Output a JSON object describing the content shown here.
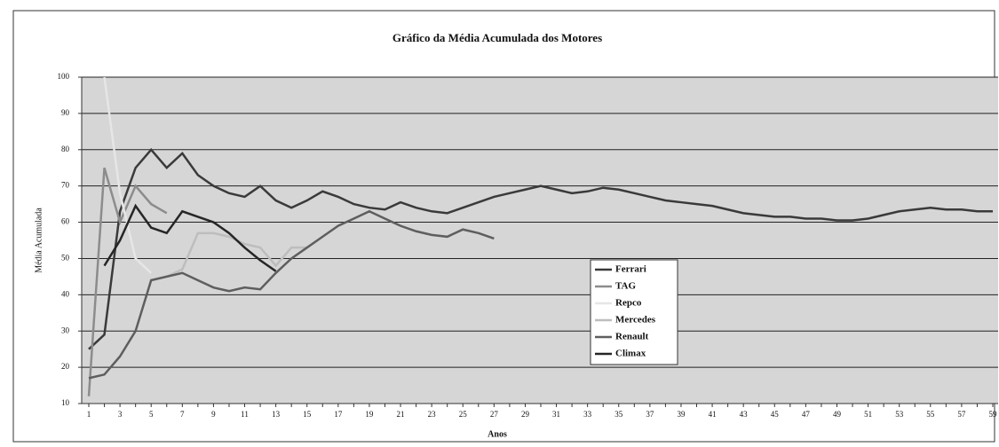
{
  "chart_data": {
    "type": "line",
    "title": "Gráfico da Média Acumulada dos Motores",
    "x_label": "Anos",
    "y_label": "Média Acumulada",
    "categories": [
      "1",
      null,
      "3",
      null,
      "5",
      null,
      "7",
      null,
      "9",
      null,
      "11",
      null,
      "13",
      null,
      "15",
      null,
      "17",
      null,
      "19",
      null,
      "21",
      null,
      "23",
      null,
      "25",
      null,
      "27",
      null,
      "29",
      null,
      "31",
      null,
      "33",
      null,
      "35",
      null,
      "37",
      null,
      "39",
      null,
      "41",
      null,
      "43",
      null,
      "45",
      null,
      "47",
      null,
      "49",
      null,
      "51",
      null,
      "53",
      null,
      "55",
      null,
      "57",
      null,
      "59"
    ],
    "ylim": [
      10,
      100
    ],
    "yticks": [
      10,
      20,
      30,
      40,
      50,
      60,
      70,
      80,
      90,
      100
    ],
    "grid": true,
    "legend": "center",
    "series": [
      {
        "name": "Ferrari",
        "color": "#3a3a3a",
        "values": [
          25,
          29,
          63,
          75,
          80,
          75,
          79,
          73,
          70,
          68,
          67,
          70,
          66,
          64,
          66,
          68.5,
          67,
          65,
          64,
          63.5,
          65.5,
          64,
          63,
          62.5,
          64,
          65.5,
          67,
          68,
          69,
          70,
          69,
          68,
          68.5,
          69.5,
          69,
          68,
          67,
          66,
          65.5,
          65,
          64.5,
          63.5,
          62.5,
          62,
          61.5,
          61.5,
          61,
          61,
          60.5,
          60.5,
          61,
          62,
          63,
          63.5,
          64,
          63.5,
          63.5,
          63,
          63
        ]
      },
      {
        "name": "TAG",
        "color": "#8c8c8c",
        "values": [
          12,
          75,
          60,
          70,
          65,
          62.5,
          null,
          null,
          null,
          null,
          null,
          null,
          null,
          null,
          null,
          null,
          null,
          null,
          null,
          null,
          null,
          null,
          null,
          null,
          null,
          null,
          null,
          null,
          null,
          null,
          null,
          null,
          null,
          null,
          null,
          null,
          null,
          null,
          null,
          null,
          null,
          null,
          null,
          null,
          null,
          null,
          null,
          null,
          null,
          null,
          null,
          null,
          null,
          null,
          null,
          null,
          null,
          null,
          null
        ]
      },
      {
        "name": "Repco",
        "color": "#e6e6e6",
        "values": [
          null,
          100,
          68,
          50,
          46,
          null,
          null,
          null,
          null,
          null,
          null,
          null,
          null,
          null,
          null,
          null,
          null,
          null,
          null,
          null,
          null,
          null,
          null,
          null,
          null,
          null,
          null,
          null,
          null,
          null,
          null,
          null,
          null,
          null,
          null,
          null,
          null,
          null,
          null,
          null,
          null,
          null,
          null,
          null,
          null,
          null,
          null,
          null,
          null,
          null,
          null,
          null,
          null,
          null,
          null,
          null,
          null,
          null,
          null
        ]
      },
      {
        "name": "Mercedes",
        "color": "#bdbdbd",
        "values": [
          null,
          null,
          null,
          null,
          null,
          45,
          47,
          57,
          57,
          56,
          54,
          53,
          48,
          53,
          53,
          null,
          null,
          null,
          null,
          null,
          null,
          null,
          null,
          null,
          null,
          null,
          null,
          null,
          null,
          null,
          null,
          null,
          null,
          null,
          null,
          null,
          null,
          null,
          null,
          null,
          null,
          null,
          null,
          null,
          null,
          null,
          null,
          null,
          null,
          null,
          null,
          null,
          null,
          null,
          null,
          null,
          null,
          null,
          null
        ]
      },
      {
        "name": "Renault",
        "color": "#5e5e5e",
        "values": [
          17,
          18,
          23,
          30,
          44,
          45,
          46,
          44,
          42,
          41,
          42,
          41.5,
          46,
          50,
          53,
          56,
          59,
          61,
          63,
          61,
          59,
          57.5,
          56.5,
          56,
          58,
          57,
          55.5,
          null,
          null,
          null,
          null,
          null,
          null,
          null,
          null,
          null,
          null,
          null,
          null,
          null,
          null,
          null,
          null,
          null,
          null,
          null,
          null,
          null,
          null,
          null,
          null,
          null,
          null,
          null,
          null,
          null,
          null,
          null,
          null
        ]
      },
      {
        "name": "Climax",
        "color": "#262626",
        "values": [
          null,
          48,
          55,
          64.5,
          58.5,
          57,
          63,
          61.5,
          60,
          57,
          53,
          49.5,
          46.5,
          null,
          null,
          null,
          null,
          null,
          null,
          null,
          null,
          null,
          null,
          null,
          null,
          null,
          null,
          null,
          null,
          null,
          null,
          null,
          null,
          null,
          null,
          null,
          null,
          null,
          null,
          null,
          null,
          null,
          null,
          null,
          null,
          null,
          null,
          null,
          null,
          null,
          null,
          null,
          null,
          null,
          null,
          null,
          null,
          null,
          null
        ]
      }
    ]
  }
}
